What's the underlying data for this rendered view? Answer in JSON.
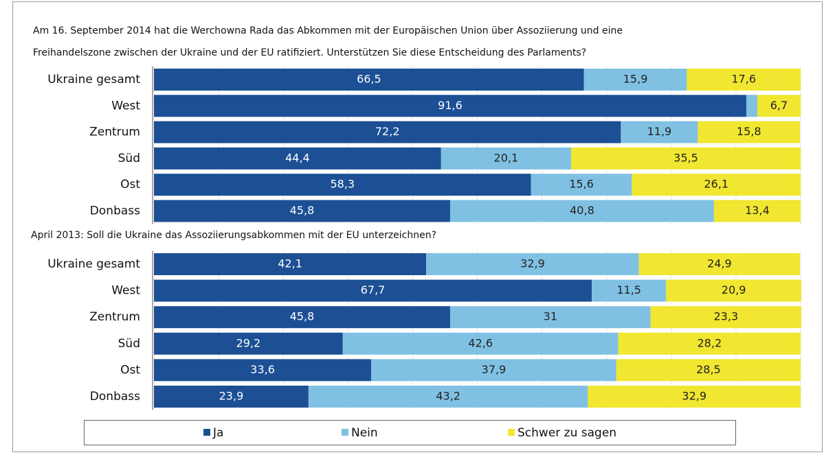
{
  "chart_data": [
    {
      "type": "stacked-bar-horizontal",
      "title": [
        "Am 16. September 2014 hat die Werchowna Rada das Abkommen mit der Europäischen Union über Assoziierung und eine",
        "Freihandelszone zwischen der Ukraine und der EU ratifiziert. Unterstützen Sie diese Entscheidung des Parlaments?"
      ],
      "categories": [
        "Ukraine gesamt",
        "West",
        "Zentrum",
        "Süd",
        "Ost",
        "Donbass"
      ],
      "series": [
        {
          "name": "Ja",
          "color": "#1c4f94",
          "values": [
            66.5,
            91.6,
            72.2,
            44.4,
            58.3,
            45.8
          ],
          "value_labels": [
            "66,5",
            "91,6",
            "72,2",
            "44,4",
            "58,3",
            "45,8"
          ]
        },
        {
          "name": "Nein",
          "color": "#80c1e3",
          "values": [
            15.9,
            1.7,
            11.9,
            20.1,
            15.6,
            40.8
          ],
          "value_labels": [
            "15,9",
            null,
            "11,9",
            "20,1",
            "15,6",
            "40,8"
          ]
        },
        {
          "name": "Schwer zu sagen",
          "color": "#f1e630",
          "values": [
            17.6,
            6.7,
            15.8,
            35.5,
            26.1,
            13.4
          ],
          "value_labels": [
            "17,6",
            "6,7",
            "15,8",
            "35,5",
            "26,1",
            "13,4"
          ]
        }
      ],
      "xlim": [
        0,
        100
      ],
      "xticks": [
        0,
        10,
        20,
        30,
        40,
        50,
        60,
        70,
        80,
        90,
        100
      ],
      "grid": true
    },
    {
      "type": "stacked-bar-horizontal",
      "title": [
        "April 2013: Soll die Ukraine das Assoziierungsabkommen mit der EU unterzeichnen?"
      ],
      "categories": [
        "Ukraine gesamt",
        "West",
        "Zentrum",
        "Süd",
        "Ost",
        "Donbass"
      ],
      "series": [
        {
          "name": "Ja",
          "color": "#1c4f94",
          "values": [
            42.1,
            67.7,
            45.8,
            29.2,
            33.6,
            23.9
          ],
          "value_labels": [
            "42,1",
            "67,7",
            "45,8",
            "29,2",
            "33,6",
            "23,9"
          ]
        },
        {
          "name": "Nein",
          "color": "#80c1e3",
          "values": [
            32.9,
            11.5,
            31,
            42.6,
            37.9,
            43.2
          ],
          "value_labels": [
            "32,9",
            "11,5",
            "31",
            "42,6",
            "37,9",
            "43,2"
          ]
        },
        {
          "name": "Schwer zu sagen",
          "color": "#f1e630",
          "values": [
            24.9,
            20.9,
            23.3,
            28.2,
            28.5,
            32.9
          ],
          "value_labels": [
            "24,9",
            "20,9",
            "23,3",
            "28,2",
            "28,5",
            "32,9"
          ]
        }
      ],
      "xlim": [
        0,
        100
      ],
      "xticks": [
        0,
        10,
        20,
        30,
        40,
        50,
        60,
        70,
        80,
        90,
        100
      ],
      "grid": true
    }
  ]
}
